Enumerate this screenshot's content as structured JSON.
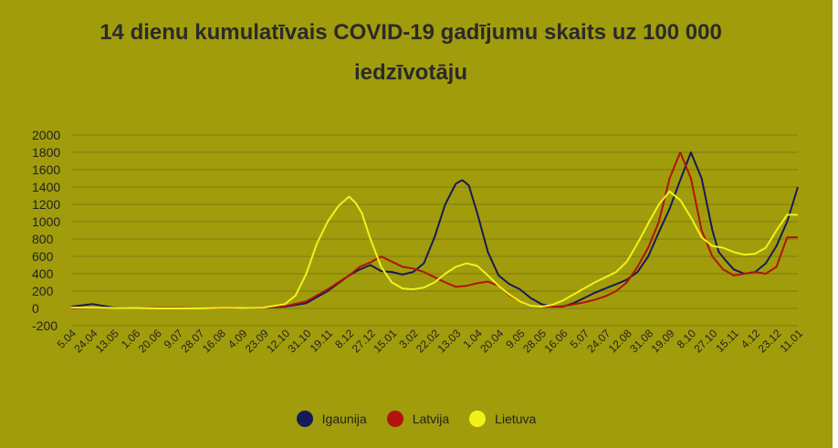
{
  "title_line1": "14 dienu kumulatīvais COVID-19 gadījumu skaits uz 100 000",
  "title_line2": "iedzīvotāju",
  "colors": {
    "background": "#a19c0c",
    "grid": "#7f7b0a",
    "text": "#222222",
    "Igaunija": "#161a5a",
    "Latvija": "#b0140c",
    "Lietuva": "#f2f21a"
  },
  "chart_data": {
    "type": "line",
    "title": "14 dienu kumulatīvais COVID-19 gadījumu skaits uz 100 000 iedzīvotāju",
    "xlabel": "",
    "ylabel": "",
    "ylim": [
      -200,
      2000
    ],
    "yticks": [
      -200,
      0,
      200,
      400,
      600,
      800,
      1000,
      1200,
      1400,
      1600,
      1800,
      2000
    ],
    "xticks": [
      "5.04",
      "24.04",
      "13.05",
      "1.06",
      "20.06",
      "9.07",
      "28.07",
      "16.08",
      "4.09",
      "23.09",
      "12.10",
      "31.10",
      "19.11",
      "8.12",
      "27.12",
      "15.01",
      "3.02",
      "22.02",
      "13.03",
      "1.04",
      "20.04",
      "9.05",
      "28.05",
      "16.06",
      "5.07",
      "24.07",
      "12.08",
      "31.08",
      "19.09",
      "8.10",
      "27.10",
      "15.11",
      "4.12",
      "23.12",
      "11.01"
    ],
    "grid": true,
    "legend_position": "bottom",
    "series": [
      {
        "name": "Igaunija",
        "color": "#161a5a",
        "x": [
          0,
          1,
          2,
          3,
          4,
          5,
          6,
          7,
          8,
          9,
          10,
          11,
          12,
          13,
          13.5,
          14,
          14.5,
          15,
          15.5,
          16,
          16.5,
          17,
          17.5,
          18,
          18.3,
          18.6,
          19,
          19.5,
          20,
          20.5,
          21,
          21.5,
          22,
          22.5,
          23,
          23.5,
          24,
          24.5,
          25,
          25.5,
          26,
          26.5,
          27,
          27.5,
          28,
          28.5,
          29,
          29.5,
          30,
          30.3,
          30.6,
          31,
          31.5,
          32,
          32.5,
          33,
          33.5,
          34
        ],
        "values": [
          20,
          50,
          10,
          5,
          5,
          0,
          0,
          0,
          5,
          10,
          20,
          60,
          200,
          380,
          450,
          500,
          430,
          420,
          390,
          420,
          520,
          820,
          1200,
          1440,
          1480,
          1420,
          1100,
          650,
          380,
          280,
          220,
          120,
          50,
          20,
          20,
          60,
          120,
          180,
          230,
          280,
          330,
          420,
          600,
          880,
          1150,
          1480,
          1800,
          1500,
          900,
          650,
          560,
          450,
          400,
          420,
          520,
          720,
          1000,
          1400
        ]
      },
      {
        "name": "Latvija",
        "color": "#b0140c",
        "x": [
          0,
          1,
          2,
          3,
          4,
          5,
          6,
          7,
          8,
          9,
          10,
          11,
          12,
          13,
          13.5,
          14,
          14.5,
          15,
          15.5,
          16,
          16.5,
          17,
          17.5,
          18,
          18.5,
          19,
          19.5,
          20,
          20.5,
          21,
          21.5,
          22,
          22.5,
          23,
          23.5,
          24,
          24.5,
          25,
          25.5,
          26,
          26.5,
          27,
          27.5,
          28,
          28.5,
          29,
          29.5,
          30,
          30.5,
          31,
          31.5,
          32,
          32.5,
          33,
          33.5,
          34
        ],
        "values": [
          0,
          10,
          5,
          5,
          5,
          5,
          0,
          0,
          5,
          10,
          25,
          80,
          220,
          380,
          480,
          530,
          600,
          540,
          480,
          460,
          420,
          360,
          300,
          250,
          260,
          290,
          310,
          260,
          150,
          80,
          30,
          20,
          20,
          25,
          45,
          70,
          100,
          140,
          200,
          300,
          480,
          700,
          1000,
          1500,
          1800,
          1500,
          900,
          600,
          450,
          380,
          400,
          420,
          400,
          480,
          820,
          820
        ]
      },
      {
        "name": "Lietuva",
        "color": "#f2f21a",
        "x": [
          0,
          1,
          2,
          3,
          4,
          5,
          6,
          7,
          8,
          9,
          10,
          10.5,
          11,
          11.5,
          12,
          12.5,
          13,
          13.3,
          13.6,
          14,
          14.5,
          15,
          15.5,
          16,
          16.5,
          17,
          17.5,
          18,
          18.5,
          19,
          19.5,
          20,
          20.5,
          21,
          21.5,
          22,
          22.5,
          23,
          23.5,
          24,
          24.5,
          25,
          25.5,
          26,
          26.5,
          27,
          27.5,
          28,
          28.5,
          29,
          29.5,
          30,
          30.5,
          31,
          31.5,
          32,
          32.5,
          33,
          33.5,
          34
        ],
        "values": [
          10,
          10,
          5,
          5,
          0,
          0,
          0,
          5,
          5,
          10,
          50,
          150,
          400,
          750,
          1000,
          1180,
          1290,
          1220,
          1100,
          800,
          480,
          300,
          230,
          220,
          240,
          300,
          400,
          480,
          520,
          490,
          380,
          260,
          160,
          80,
          30,
          20,
          40,
          90,
          160,
          230,
          300,
          360,
          420,
          540,
          750,
          980,
          1200,
          1350,
          1250,
          1050,
          820,
          720,
          700,
          650,
          620,
          630,
          700,
          900,
          1080,
          1080
        ]
      }
    ]
  }
}
